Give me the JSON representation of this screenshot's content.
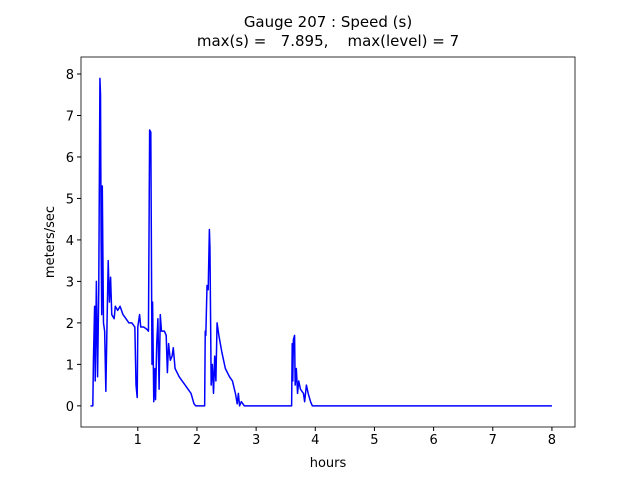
{
  "chart_data": {
    "type": "line",
    "title": "Gauge 207 : Speed (s)",
    "subtitle": "max(s) =   7.895,    max(level) = 7",
    "x_label": "hours",
    "y_label": "meters/sec",
    "color": "#0000ff",
    "x": [
      0.2,
      0.24,
      0.25,
      0.27,
      0.28,
      0.3,
      0.32,
      0.34,
      0.36,
      0.37,
      0.38,
      0.39,
      0.4,
      0.42,
      0.44,
      0.46,
      0.48,
      0.5,
      0.52,
      0.54,
      0.56,
      0.6,
      0.62,
      0.66,
      0.7,
      0.75,
      0.8,
      0.85,
      0.9,
      0.95,
      0.97,
      0.99,
      1.0,
      1.03,
      1.05,
      1.1,
      1.15,
      1.18,
      1.2,
      1.22,
      1.24,
      1.25,
      1.27,
      1.29,
      1.3,
      1.32,
      1.34,
      1.36,
      1.38,
      1.4,
      1.45,
      1.48,
      1.5,
      1.52,
      1.55,
      1.58,
      1.6,
      1.63,
      1.7,
      1.8,
      1.9,
      1.95,
      1.98,
      2.13,
      2.14,
      2.15,
      2.17,
      2.19,
      2.21,
      2.22,
      2.24,
      2.26,
      2.28,
      2.3,
      2.32,
      2.34,
      2.37,
      2.42,
      2.48,
      2.55,
      2.6,
      2.65,
      2.68,
      2.7,
      2.72,
      2.75,
      2.8,
      3.6,
      3.61,
      3.62,
      3.63,
      3.65,
      3.66,
      3.68,
      3.7,
      3.72,
      3.75,
      3.8,
      3.82,
      3.85,
      3.88,
      3.92,
      3.95,
      8
    ],
    "values": [
      0,
      0,
      1.1,
      2.4,
      0.6,
      3.0,
      0.7,
      2.8,
      7.895,
      7.5,
      4.0,
      2.2,
      5.3,
      2.0,
      1.8,
      0.35,
      2.0,
      3.5,
      2.5,
      3.1,
      2.2,
      2.1,
      2.4,
      2.3,
      2.4,
      2.2,
      2.1,
      2.0,
      2.0,
      1.9,
      0.5,
      0.2,
      1.9,
      2.2,
      1.9,
      1.9,
      1.85,
      1.8,
      6.65,
      6.6,
      1.0,
      2.5,
      0.1,
      0.9,
      0.15,
      1.5,
      2.1,
      0.4,
      2.2,
      1.8,
      1.8,
      1.7,
      0.8,
      1.5,
      1.1,
      1.2,
      1.4,
      0.9,
      0.7,
      0.5,
      0.3,
      0.05,
      0,
      0,
      1.8,
      1.7,
      2.9,
      2.8,
      4.25,
      3.8,
      0.5,
      1.0,
      0.3,
      1.2,
      0.6,
      2.0,
      1.7,
      1.3,
      0.9,
      0.7,
      0.6,
      0.3,
      0.05,
      0.3,
      0,
      0.1,
      0,
      0,
      1.5,
      0.6,
      1.6,
      1.7,
      0.5,
      0.9,
      0.3,
      0.6,
      0.4,
      0.3,
      0.1,
      0.5,
      0.3,
      0.1,
      0,
      0
    ],
    "xlim": [
      0.04,
      8.39
    ],
    "ylim": [
      -0.51,
      8.41
    ],
    "xticks": [
      1,
      2,
      3,
      4,
      5,
      6,
      7,
      8
    ],
    "yticks": [
      0,
      1,
      2,
      3,
      4,
      5,
      6,
      7,
      8
    ]
  }
}
